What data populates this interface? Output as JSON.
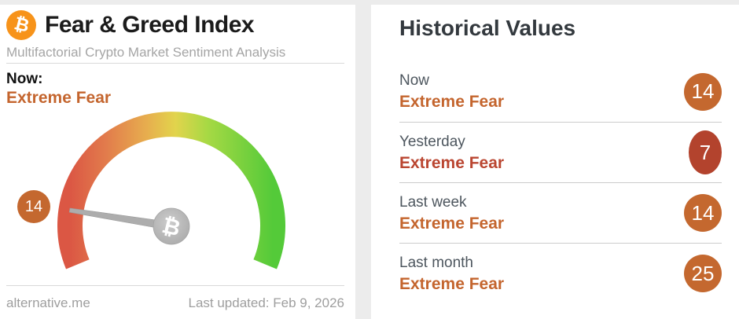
{
  "colors": {
    "bitcoin_orange": "#f7931a",
    "badge_orange": "#c4682f",
    "badge_red": "#b3432d",
    "text_orange": "#c4652e",
    "text_red": "#ba4631",
    "gauge_stops": [
      "#db5744",
      "#e27c4c",
      "#e7ae4e",
      "#e2d44c",
      "#a6d944",
      "#54ca39"
    ],
    "needle_gray": "#adadad"
  },
  "left_panel": {
    "logo_icon": "bitcoin-icon",
    "title": "Fear & Greed Index",
    "subtitle": "Multifactorial Crypto Market Sentiment Analysis",
    "now_label": "Now:",
    "now_classification": "Extreme Fear",
    "gauge_value": "14",
    "gauge_hub_icon": "bitcoin-icon",
    "bitcoin_symbol": "₿",
    "footer": {
      "site": "alternative.me",
      "last_updated": "Last updated: Feb 9, 2026"
    }
  },
  "right_panel": {
    "title": "Historical Values",
    "rows": [
      {
        "label": "Now",
        "classification": "Extreme Fear",
        "value": "14",
        "tone": "orange"
      },
      {
        "label": "Yesterday",
        "classification": "Extreme Fear",
        "value": "7",
        "tone": "red"
      },
      {
        "label": "Last week",
        "classification": "Extreme Fear",
        "value": "14",
        "tone": "orange"
      },
      {
        "label": "Last month",
        "classification": "Extreme Fear",
        "value": "25",
        "tone": "orange"
      }
    ]
  },
  "chart_data": {
    "type": "gauge",
    "title": "Fear & Greed Index",
    "value": 14,
    "range": [
      0,
      100
    ],
    "classification": "Extreme Fear",
    "gauge_sweep_degrees": 225,
    "color_scale": "red (0, fear) to yellow to green (100, greed)",
    "history": [
      {
        "label": "Now",
        "value": 14,
        "classification": "Extreme Fear"
      },
      {
        "label": "Yesterday",
        "value": 7,
        "classification": "Extreme Fear"
      },
      {
        "label": "Last week",
        "value": 14,
        "classification": "Extreme Fear"
      },
      {
        "label": "Last month",
        "value": 25,
        "classification": "Extreme Fear"
      }
    ]
  }
}
